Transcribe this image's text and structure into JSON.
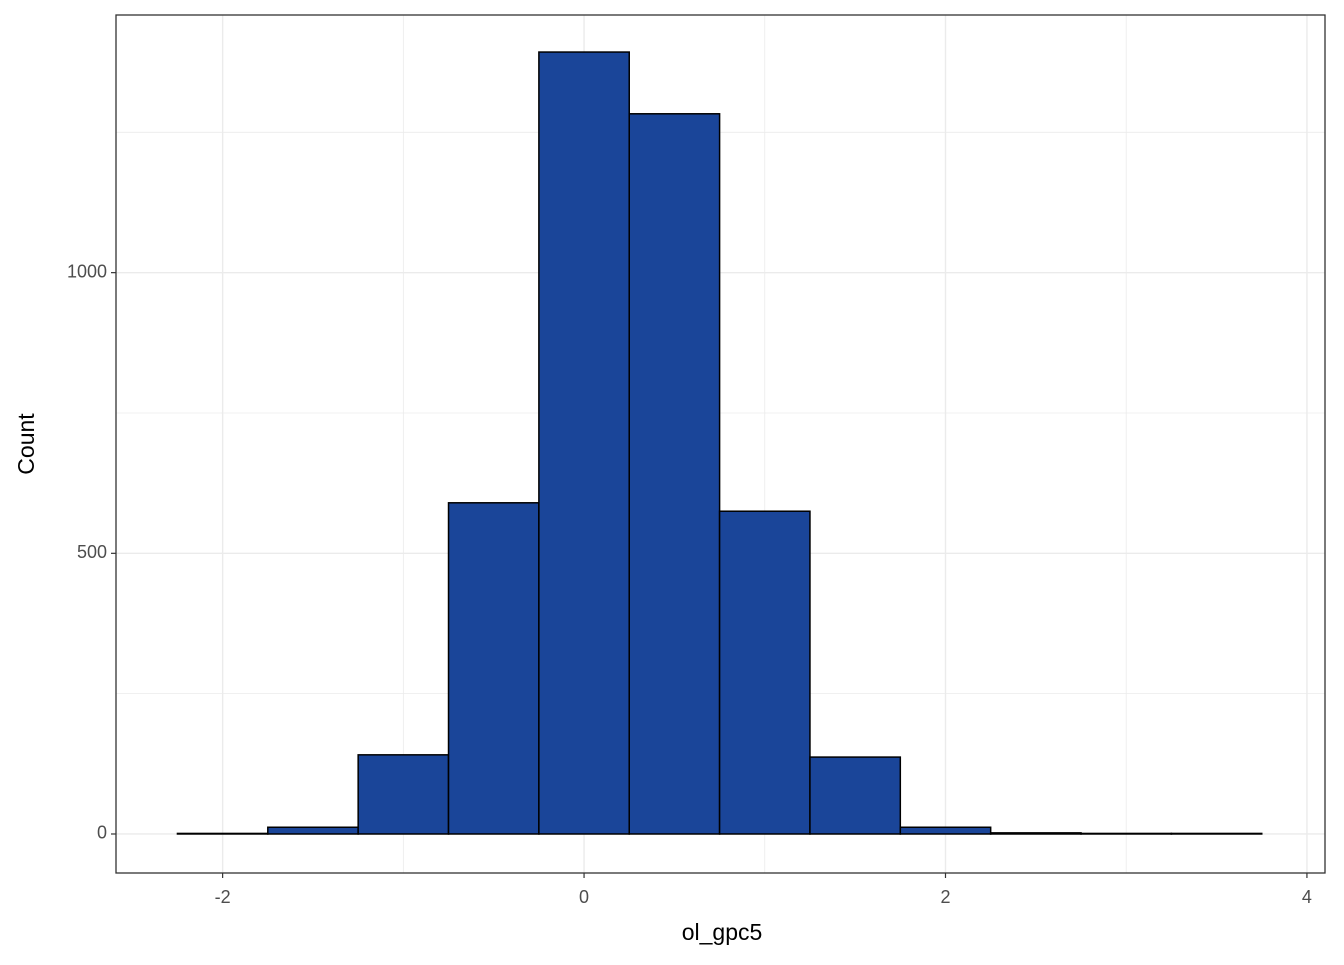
{
  "chart_data": {
    "type": "histogram",
    "x_label": "ol_gpc5",
    "y_label": "Count",
    "bins": [
      -2.25,
      -1.75,
      -1.25,
      -0.75,
      -0.25,
      0.25,
      0.75,
      1.25,
      1.75,
      2.25,
      2.75,
      3.25,
      3.75
    ],
    "counts": [
      1,
      12,
      141,
      590,
      1393,
      1283,
      575,
      137,
      12,
      2,
      1,
      1
    ],
    "color": "#1a4599",
    "edge_color": "#000000",
    "xlim": [
      -2.59,
      4.1
    ],
    "ylim": [
      -69.5,
      1459
    ],
    "xticks": [
      -2,
      0,
      2,
      4
    ],
    "yticks": [
      0,
      500,
      1000
    ],
    "x_minor_ticks": [
      -1,
      1,
      3
    ],
    "y_minor_ticks": [
      250,
      750,
      1250
    ],
    "grid": true
  }
}
